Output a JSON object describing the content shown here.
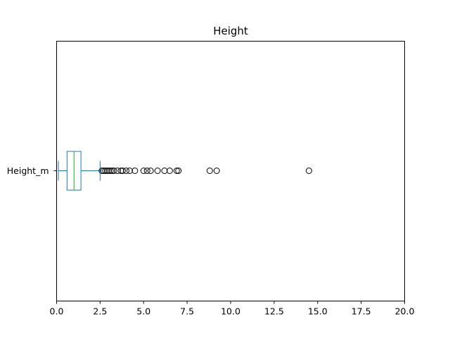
{
  "chart_data": {
    "type": "box",
    "orientation": "horizontal",
    "title": "Height",
    "categories": [
      "Height_m"
    ],
    "xlim": [
      0.0,
      20.0
    ],
    "xticks": [
      0.0,
      2.5,
      5.0,
      7.5,
      10.0,
      12.5,
      15.0,
      17.5,
      20.0
    ],
    "xtick_labels": [
      "0.0",
      "2.5",
      "5.0",
      "7.5",
      "10.0",
      "12.5",
      "15.0",
      "17.5",
      "20.0"
    ],
    "box": {
      "whisker_low": 0.1,
      "q1": 0.6,
      "median": 1.0,
      "q3": 1.4,
      "whisker_high": 2.5
    },
    "outliers": [
      2.6,
      2.7,
      2.8,
      2.9,
      3.0,
      3.1,
      3.2,
      3.3,
      3.5,
      3.7,
      3.8,
      4.0,
      4.2,
      4.5,
      5.0,
      5.2,
      5.4,
      5.8,
      6.2,
      6.5,
      6.9,
      7.0,
      8.8,
      9.2,
      14.5
    ],
    "grid": false,
    "colors": {
      "box": "#1f77b4",
      "median": "#2ca02c",
      "outlier": "#000000"
    }
  }
}
